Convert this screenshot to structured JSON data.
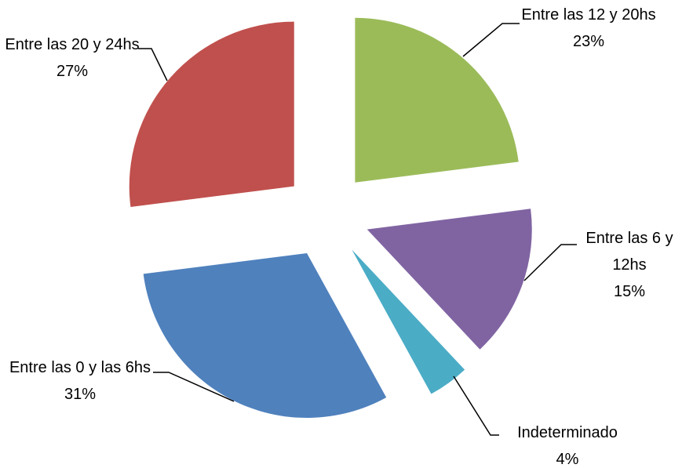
{
  "chart_data": {
    "type": "pie",
    "categories": [
      "Entre las 12 y 20hs",
      "Entre las 6 y 12hs",
      "Indeterminado",
      "Entre las 0 y las 6hs",
      "Entre las 20 y 24hs"
    ],
    "values": [
      23,
      15,
      4,
      31,
      27
    ],
    "value_labels": [
      "23%",
      "15%",
      "4%",
      "31%",
      "27%"
    ],
    "colors": [
      "#9bbb59",
      "#8064a2",
      "#4bacc6",
      "#4f81bd",
      "#c0504d"
    ],
    "exploded": true
  }
}
